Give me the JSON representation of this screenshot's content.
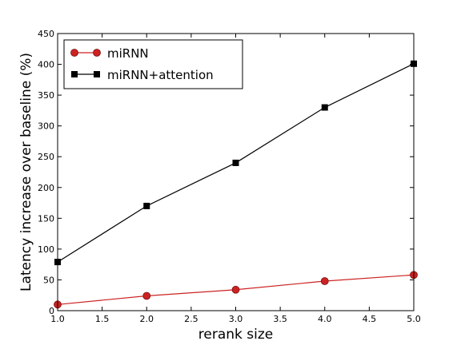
{
  "chart_data": {
    "type": "line",
    "xlabel": "rerank size",
    "ylabel": "Latency increase over baseline (%)",
    "xlim": [
      1.0,
      5.0
    ],
    "ylim": [
      0,
      450
    ],
    "xticks": [
      "1.0",
      "1.5",
      "2.0",
      "2.5",
      "3.0",
      "3.5",
      "4.0",
      "4.5",
      "5.0"
    ],
    "yticks": [
      "0",
      "50",
      "100",
      "150",
      "200",
      "250",
      "300",
      "350",
      "400",
      "450"
    ],
    "grid": false,
    "legend_position": "top-left",
    "series": [
      {
        "name": "miRNN",
        "color": "#cc2222",
        "marker": "circle",
        "x": [
          1,
          2,
          3,
          4,
          5
        ],
        "y": [
          10,
          24,
          34,
          48,
          58
        ]
      },
      {
        "name": "miRNN+attention",
        "color": "#000000",
        "marker": "square",
        "x": [
          1,
          2,
          3,
          4,
          5
        ],
        "y": [
          79,
          170,
          240,
          330,
          401
        ]
      }
    ]
  }
}
